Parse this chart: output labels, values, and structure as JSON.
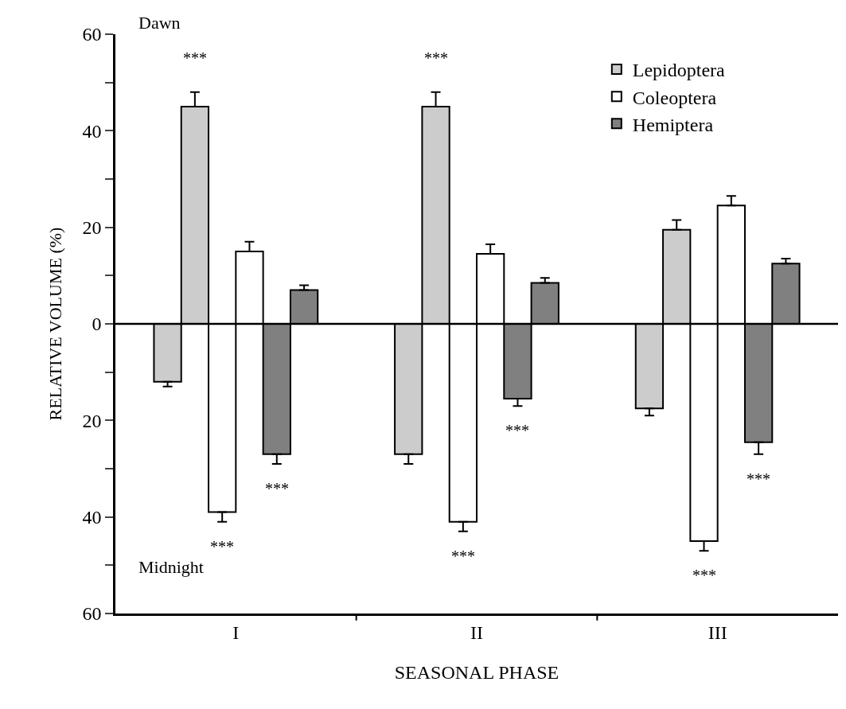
{
  "chart_data": {
    "type": "bar",
    "xlabel": "SEASONAL PHASE",
    "ylabel": "RELATIVE VOLUME (%)",
    "categories": [
      "I",
      "II",
      "III"
    ],
    "series": [
      {
        "name": null,
        "color": "#cccccc",
        "values": [
          -12,
          -27,
          -17.5
        ],
        "errors": [
          [
            -13,
            -12
          ],
          [
            -29,
            -27
          ],
          [
            -19,
            -17.5
          ]
        ]
      },
      {
        "name": "Lepidoptera",
        "color": "#cccccc",
        "values": [
          45,
          45,
          19.5
        ],
        "errors": [
          [
            45,
            48
          ],
          [
            45,
            48
          ],
          [
            19.5,
            21.5
          ]
        ],
        "value_labels": [
          "***",
          "***",
          null
        ]
      },
      {
        "name": null,
        "color": "#ffffff",
        "values": [
          -39,
          -41,
          -45
        ],
        "errors": [
          [
            -41,
            -39
          ],
          [
            -43,
            -41
          ],
          [
            -47,
            -45
          ]
        ],
        "value_labels": [
          "***",
          "***",
          "***"
        ]
      },
      {
        "name": "Coleoptera",
        "color": "#ffffff",
        "values": [
          15,
          14.5,
          24.5
        ],
        "errors": [
          [
            15,
            17
          ],
          [
            14.5,
            16.5
          ],
          [
            24.5,
            26.5
          ]
        ]
      },
      {
        "name": null,
        "color": "#808080",
        "values": [
          -27,
          -15.5,
          -24.5
        ],
        "errors": [
          [
            -29,
            -27
          ],
          [
            -17,
            -15.5
          ],
          [
            -27,
            -24.5
          ]
        ],
        "value_labels": [
          "***",
          "***",
          "***"
        ]
      },
      {
        "name": "Hemiptera",
        "color": "#808080",
        "values": [
          7,
          8.5,
          12.5
        ],
        "errors": [
          [
            7,
            8
          ],
          [
            8.5,
            9.5
          ],
          [
            12.5,
            13.5
          ]
        ]
      }
    ],
    "ylim": [
      -60,
      60
    ],
    "yticks": [
      {
        "value": -60,
        "label": "60"
      },
      {
        "value": -50,
        "label": null
      },
      {
        "value": -40,
        "label": "40"
      },
      {
        "value": -30,
        "label": null
      },
      {
        "value": -20,
        "label": "20"
      },
      {
        "value": -10,
        "label": null
      },
      0,
      {
        "value": 10,
        "label": null
      },
      20,
      {
        "value": 30,
        "label": null
      },
      40,
      {
        "value": 50,
        "label": null
      },
      60
    ],
    "ref_lines": [
      {
        "axis": "y",
        "value": 0,
        "color": "#000000"
      }
    ],
    "annotations": [
      "Dawn",
      "Midnight"
    ],
    "legend": "top right"
  }
}
